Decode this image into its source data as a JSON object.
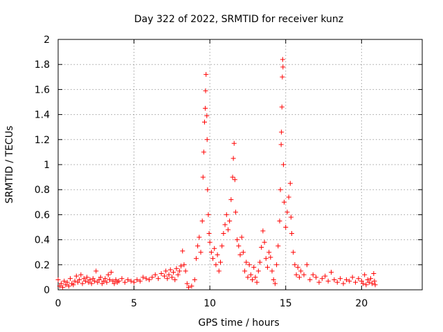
{
  "chart_data": {
    "type": "scatter",
    "title": "Day 322 of 2022, SRMTID for receiver kunz",
    "xlabel": "GPS time / hours",
    "ylabel": "SRMTID / TECUs",
    "xlim": [
      0,
      24
    ],
    "ylim": [
      0,
      2
    ],
    "xticks": [
      0,
      5,
      10,
      15,
      20
    ],
    "xtick_labels": [
      "0",
      "5",
      "10",
      "15",
      "20"
    ],
    "yticks": [
      0,
      0.2,
      0.4,
      0.6,
      0.8,
      1,
      1.2,
      1.4,
      1.6,
      1.8,
      2
    ],
    "ytick_labels": [
      "0",
      "0.2",
      "0.4",
      "0.6",
      "0.8",
      "1",
      "1.2",
      "1.4",
      "1.6",
      "1.8",
      "2"
    ],
    "grid": true,
    "marker": "+",
    "color": "#ff0000",
    "series": [
      {
        "name": "SRMTID",
        "points": [
          [
            0.0,
            0.08
          ],
          [
            0.1,
            0.03
          ],
          [
            0.2,
            0.05
          ],
          [
            0.3,
            0.02
          ],
          [
            0.4,
            0.07
          ],
          [
            0.5,
            0.04
          ],
          [
            0.6,
            0.06
          ],
          [
            0.7,
            0.03
          ],
          [
            0.8,
            0.09
          ],
          [
            0.9,
            0.05
          ],
          [
            1.0,
            0.04
          ],
          [
            1.1,
            0.07
          ],
          [
            1.2,
            0.11
          ],
          [
            1.3,
            0.06
          ],
          [
            1.4,
            0.08
          ],
          [
            1.5,
            0.12
          ],
          [
            1.6,
            0.05
          ],
          [
            1.7,
            0.09
          ],
          [
            1.8,
            0.07
          ],
          [
            1.9,
            0.1
          ],
          [
            2.0,
            0.06
          ],
          [
            2.1,
            0.08
          ],
          [
            2.2,
            0.05
          ],
          [
            2.3,
            0.09
          ],
          [
            2.4,
            0.07
          ],
          [
            2.5,
            0.15
          ],
          [
            2.6,
            0.06
          ],
          [
            2.7,
            0.08
          ],
          [
            2.8,
            0.1
          ],
          [
            2.9,
            0.05
          ],
          [
            3.0,
            0.07
          ],
          [
            3.1,
            0.09
          ],
          [
            3.2,
            0.06
          ],
          [
            3.3,
            0.12
          ],
          [
            3.4,
            0.08
          ],
          [
            3.5,
            0.14
          ],
          [
            3.6,
            0.07
          ],
          [
            3.7,
            0.05
          ],
          [
            3.8,
            0.08
          ],
          [
            3.9,
            0.06
          ],
          [
            4.0,
            0.07
          ],
          [
            4.2,
            0.09
          ],
          [
            4.4,
            0.06
          ],
          [
            4.6,
            0.08
          ],
          [
            4.8,
            0.07
          ],
          [
            5.0,
            0.06
          ],
          [
            5.2,
            0.08
          ],
          [
            5.4,
            0.07
          ],
          [
            5.6,
            0.1
          ],
          [
            5.8,
            0.09
          ],
          [
            6.0,
            0.08
          ],
          [
            6.2,
            0.1
          ],
          [
            6.4,
            0.12
          ],
          [
            6.6,
            0.09
          ],
          [
            6.8,
            0.13
          ],
          [
            7.0,
            0.11
          ],
          [
            7.1,
            0.15
          ],
          [
            7.2,
            0.09
          ],
          [
            7.3,
            0.12
          ],
          [
            7.4,
            0.16
          ],
          [
            7.5,
            0.1
          ],
          [
            7.6,
            0.14
          ],
          [
            7.7,
            0.08
          ],
          [
            7.8,
            0.17
          ],
          [
            7.9,
            0.12
          ],
          [
            8.0,
            0.15
          ],
          [
            8.1,
            0.19
          ],
          [
            8.2,
            0.31
          ],
          [
            8.3,
            0.2
          ],
          [
            8.4,
            0.15
          ],
          [
            8.5,
            0.05
          ],
          [
            8.6,
            0.02
          ],
          [
            8.8,
            0.03
          ],
          [
            9.0,
            0.08
          ],
          [
            9.1,
            0.25
          ],
          [
            9.2,
            0.35
          ],
          [
            9.3,
            0.42
          ],
          [
            9.4,
            0.3
          ],
          [
            9.5,
            0.55
          ],
          [
            9.55,
            0.9
          ],
          [
            9.6,
            1.1
          ],
          [
            9.65,
            1.34
          ],
          [
            9.7,
            1.45
          ],
          [
            9.72,
            1.59
          ],
          [
            9.75,
            1.72
          ],
          [
            9.8,
            1.39
          ],
          [
            9.82,
            1.2
          ],
          [
            9.85,
            0.8
          ],
          [
            9.9,
            0.6
          ],
          [
            9.95,
            0.45
          ],
          [
            10.0,
            0.38
          ],
          [
            10.1,
            0.3
          ],
          [
            10.2,
            0.25
          ],
          [
            10.3,
            0.33
          ],
          [
            10.4,
            0.2
          ],
          [
            10.5,
            0.28
          ],
          [
            10.6,
            0.15
          ],
          [
            10.7,
            0.22
          ],
          [
            10.8,
            0.35
          ],
          [
            10.9,
            0.45
          ],
          [
            11.0,
            0.52
          ],
          [
            11.1,
            0.6
          ],
          [
            11.2,
            0.48
          ],
          [
            11.3,
            0.55
          ],
          [
            11.4,
            0.72
          ],
          [
            11.5,
            0.9
          ],
          [
            11.55,
            1.05
          ],
          [
            11.6,
            1.17
          ],
          [
            11.65,
            0.88
          ],
          [
            11.7,
            0.62
          ],
          [
            11.8,
            0.4
          ],
          [
            11.9,
            0.35
          ],
          [
            12.0,
            0.28
          ],
          [
            12.1,
            0.42
          ],
          [
            12.2,
            0.3
          ],
          [
            12.3,
            0.15
          ],
          [
            12.4,
            0.22
          ],
          [
            12.5,
            0.1
          ],
          [
            12.6,
            0.2
          ],
          [
            12.7,
            0.12
          ],
          [
            12.8,
            0.08
          ],
          [
            12.9,
            0.18
          ],
          [
            13.0,
            0.1
          ],
          [
            13.1,
            0.06
          ],
          [
            13.2,
            0.15
          ],
          [
            13.3,
            0.22
          ],
          [
            13.4,
            0.34
          ],
          [
            13.5,
            0.47
          ],
          [
            13.6,
            0.38
          ],
          [
            13.7,
            0.25
          ],
          [
            13.8,
            0.18
          ],
          [
            13.9,
            0.3
          ],
          [
            14.0,
            0.26
          ],
          [
            14.1,
            0.15
          ],
          [
            14.2,
            0.08
          ],
          [
            14.3,
            0.05
          ],
          [
            14.4,
            0.2
          ],
          [
            14.5,
            0.35
          ],
          [
            14.6,
            0.55
          ],
          [
            14.65,
            0.8
          ],
          [
            14.7,
            1.16
          ],
          [
            14.72,
            1.26
          ],
          [
            14.75,
            1.46
          ],
          [
            14.78,
            1.7
          ],
          [
            14.8,
            1.84
          ],
          [
            14.82,
            1.78
          ],
          [
            14.85,
            1.0
          ],
          [
            14.9,
            0.7
          ],
          [
            15.0,
            0.5
          ],
          [
            15.1,
            0.62
          ],
          [
            15.2,
            0.74
          ],
          [
            15.3,
            0.85
          ],
          [
            15.35,
            0.58
          ],
          [
            15.4,
            0.45
          ],
          [
            15.5,
            0.3
          ],
          [
            15.6,
            0.2
          ],
          [
            15.7,
            0.12
          ],
          [
            15.8,
            0.18
          ],
          [
            15.9,
            0.1
          ],
          [
            16.0,
            0.15
          ],
          [
            16.2,
            0.12
          ],
          [
            16.4,
            0.2
          ],
          [
            16.6,
            0.08
          ],
          [
            16.8,
            0.12
          ],
          [
            17.0,
            0.1
          ],
          [
            17.2,
            0.06
          ],
          [
            17.4,
            0.09
          ],
          [
            17.6,
            0.11
          ],
          [
            17.8,
            0.07
          ],
          [
            18.0,
            0.14
          ],
          [
            18.2,
            0.08
          ],
          [
            18.4,
            0.06
          ],
          [
            18.6,
            0.09
          ],
          [
            18.8,
            0.05
          ],
          [
            19.0,
            0.08
          ],
          [
            19.2,
            0.07
          ],
          [
            19.4,
            0.1
          ],
          [
            19.6,
            0.06
          ],
          [
            19.8,
            0.09
          ],
          [
            20.0,
            0.07
          ],
          [
            20.1,
            0.05
          ],
          [
            20.2,
            0.12
          ],
          [
            20.3,
            0.04
          ],
          [
            20.4,
            0.08
          ],
          [
            20.5,
            0.06
          ],
          [
            20.6,
            0.09
          ],
          [
            20.7,
            0.05
          ],
          [
            20.8,
            0.13
          ],
          [
            20.85,
            0.07
          ],
          [
            20.9,
            0.04
          ]
        ]
      }
    ]
  }
}
